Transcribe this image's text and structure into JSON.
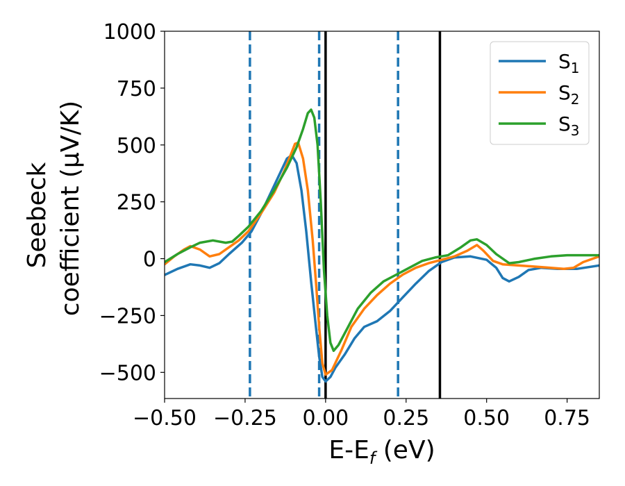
{
  "chart_data": {
    "type": "line",
    "xlabel": "E-E",
    "xlabel_sub": "f",
    "xlabel_unit": " (eV)",
    "ylabel_line1": "Seebeck",
    "ylabel_line2": "coefficient  (μV/K)",
    "xlim": [
      -0.5,
      0.85
    ],
    "ylim": [
      -615,
      1000
    ],
    "x_ticks": [
      -0.5,
      -0.25,
      0.0,
      0.25,
      0.5,
      0.75
    ],
    "x_tick_labels": [
      "−0.50",
      "−0.25",
      "0.00",
      "0.25",
      "0.50",
      "0.75"
    ],
    "y_ticks": [
      1000,
      750,
      500,
      250,
      0,
      -250,
      -500
    ],
    "y_tick_labels": [
      "1000",
      "750",
      "500",
      "250",
      "0",
      "−250",
      "−500"
    ],
    "grid": false,
    "legend_position": "top-right",
    "vlines": [
      {
        "x": -0.235,
        "style": "dashed",
        "color": "#1f77b4"
      },
      {
        "x": -0.02,
        "style": "dashed",
        "color": "#1f77b4"
      },
      {
        "x": 0.0,
        "style": "solid",
        "color": "#000000"
      },
      {
        "x": 0.225,
        "style": "dashed",
        "color": "#1f77b4"
      },
      {
        "x": 0.355,
        "style": "solid",
        "color": "#000000"
      }
    ],
    "series": [
      {
        "name": "S",
        "sub": "1",
        "color": "#1f77b4",
        "points": [
          [
            -0.5,
            -72
          ],
          [
            -0.46,
            -45
          ],
          [
            -0.42,
            -25
          ],
          [
            -0.39,
            -30
          ],
          [
            -0.36,
            -40
          ],
          [
            -0.33,
            -20
          ],
          [
            -0.3,
            20
          ],
          [
            -0.26,
            70
          ],
          [
            -0.23,
            120
          ],
          [
            -0.2,
            200
          ],
          [
            -0.17,
            290
          ],
          [
            -0.14,
            380
          ],
          [
            -0.12,
            440
          ],
          [
            -0.105,
            455
          ],
          [
            -0.09,
            420
          ],
          [
            -0.075,
            300
          ],
          [
            -0.06,
            120
          ],
          [
            -0.045,
            -100
          ],
          [
            -0.03,
            -300
          ],
          [
            -0.02,
            -430
          ],
          [
            -0.01,
            -520
          ],
          [
            0.0,
            -540
          ],
          [
            0.015,
            -520
          ],
          [
            0.03,
            -480
          ],
          [
            0.06,
            -420
          ],
          [
            0.09,
            -350
          ],
          [
            0.12,
            -300
          ],
          [
            0.16,
            -275
          ],
          [
            0.2,
            -230
          ],
          [
            0.24,
            -170
          ],
          [
            0.28,
            -110
          ],
          [
            0.32,
            -55
          ],
          [
            0.36,
            -15
          ],
          [
            0.4,
            5
          ],
          [
            0.45,
            10
          ],
          [
            0.5,
            -5
          ],
          [
            0.53,
            -40
          ],
          [
            0.55,
            -85
          ],
          [
            0.57,
            -100
          ],
          [
            0.6,
            -80
          ],
          [
            0.63,
            -50
          ],
          [
            0.67,
            -40
          ],
          [
            0.72,
            -45
          ],
          [
            0.78,
            -45
          ],
          [
            0.85,
            -30
          ]
        ]
      },
      {
        "name": "S",
        "sub": "2",
        "color": "#ff7f0e",
        "points": [
          [
            -0.5,
            -25
          ],
          [
            -0.47,
            10
          ],
          [
            -0.44,
            40
          ],
          [
            -0.42,
            55
          ],
          [
            -0.39,
            40
          ],
          [
            -0.36,
            10
          ],
          [
            -0.33,
            20
          ],
          [
            -0.3,
            50
          ],
          [
            -0.27,
            80
          ],
          [
            -0.24,
            120
          ],
          [
            -0.2,
            200
          ],
          [
            -0.16,
            290
          ],
          [
            -0.13,
            380
          ],
          [
            -0.11,
            450
          ],
          [
            -0.095,
            505
          ],
          [
            -0.085,
            510
          ],
          [
            -0.07,
            440
          ],
          [
            -0.055,
            300
          ],
          [
            -0.04,
            80
          ],
          [
            -0.03,
            -100
          ],
          [
            -0.02,
            -300
          ],
          [
            -0.01,
            -460
          ],
          [
            0.0,
            -510
          ],
          [
            0.02,
            -490
          ],
          [
            0.05,
            -400
          ],
          [
            0.08,
            -300
          ],
          [
            0.12,
            -220
          ],
          [
            0.16,
            -160
          ],
          [
            0.2,
            -110
          ],
          [
            0.24,
            -70
          ],
          [
            0.28,
            -40
          ],
          [
            0.32,
            -20
          ],
          [
            0.36,
            -5
          ],
          [
            0.4,
            10
          ],
          [
            0.44,
            35
          ],
          [
            0.47,
            60
          ],
          [
            0.49,
            35
          ],
          [
            0.52,
            -10
          ],
          [
            0.55,
            -25
          ],
          [
            0.6,
            -30
          ],
          [
            0.65,
            -35
          ],
          [
            0.7,
            -40
          ],
          [
            0.74,
            -45
          ],
          [
            0.77,
            -40
          ],
          [
            0.8,
            -15
          ],
          [
            0.85,
            10
          ]
        ]
      },
      {
        "name": "S",
        "sub": "3",
        "color": "#2ca02c",
        "points": [
          [
            -0.5,
            -15
          ],
          [
            -0.46,
            20
          ],
          [
            -0.42,
            50
          ],
          [
            -0.39,
            70
          ],
          [
            -0.35,
            80
          ],
          [
            -0.31,
            70
          ],
          [
            -0.29,
            75
          ],
          [
            -0.27,
            100
          ],
          [
            -0.24,
            140
          ],
          [
            -0.2,
            210
          ],
          [
            -0.16,
            300
          ],
          [
            -0.12,
            400
          ],
          [
            -0.09,
            490
          ],
          [
            -0.07,
            570
          ],
          [
            -0.055,
            640
          ],
          [
            -0.045,
            655
          ],
          [
            -0.035,
            620
          ],
          [
            -0.025,
            500
          ],
          [
            -0.015,
            250
          ],
          [
            -0.005,
            -50
          ],
          [
            0.005,
            -250
          ],
          [
            0.015,
            -370
          ],
          [
            0.025,
            -405
          ],
          [
            0.04,
            -380
          ],
          [
            0.07,
            -300
          ],
          [
            0.1,
            -220
          ],
          [
            0.14,
            -150
          ],
          [
            0.18,
            -100
          ],
          [
            0.22,
            -70
          ],
          [
            0.26,
            -40
          ],
          [
            0.3,
            -10
          ],
          [
            0.34,
            5
          ],
          [
            0.38,
            15
          ],
          [
            0.42,
            50
          ],
          [
            0.45,
            80
          ],
          [
            0.47,
            85
          ],
          [
            0.5,
            60
          ],
          [
            0.53,
            20
          ],
          [
            0.57,
            -20
          ],
          [
            0.6,
            -15
          ],
          [
            0.65,
            0
          ],
          [
            0.7,
            10
          ],
          [
            0.75,
            15
          ],
          [
            0.8,
            15
          ],
          [
            0.85,
            15
          ]
        ]
      }
    ]
  }
}
